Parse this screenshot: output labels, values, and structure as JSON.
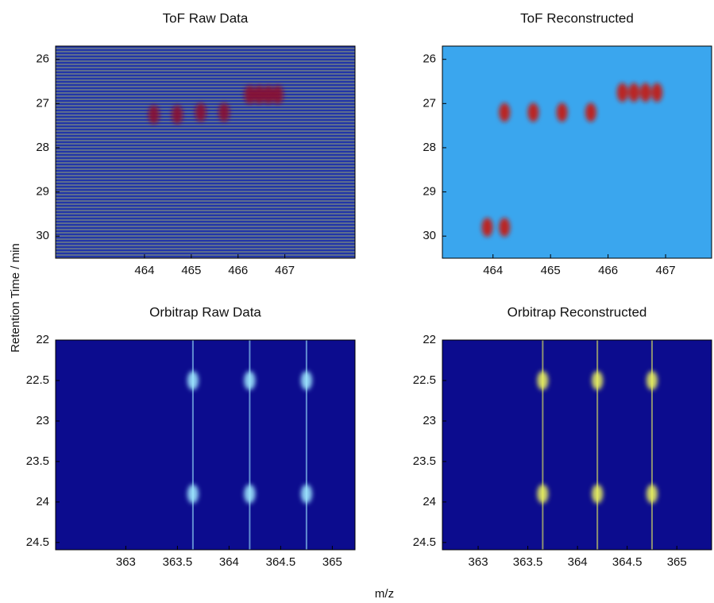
{
  "xlabel": "m/z",
  "ylabel": "Retention Time / min",
  "chart_data": [
    {
      "type": "heatmap",
      "title": "ToF Raw Data",
      "background": "#2236a8",
      "color": "#8a1030",
      "xlim": [
        462.1,
        468.5
      ],
      "ylim": [
        25.7,
        30.5
      ],
      "xticks": [
        464,
        465,
        466,
        467
      ],
      "yticks": [
        26,
        27,
        28,
        29,
        30
      ],
      "x": [
        464.2,
        464.7,
        465.2,
        465.7,
        466.25,
        466.45,
        466.65,
        466.85
      ],
      "y": [
        27.25,
        27.25,
        27.2,
        27.2,
        26.8,
        26.8,
        26.8,
        26.8
      ]
    },
    {
      "type": "heatmap",
      "title": "ToF Reconstructed",
      "background": "#3aa6ee",
      "color": "#c81a10",
      "xlim": [
        463.12,
        467.8
      ],
      "ylim": [
        25.7,
        30.5
      ],
      "xticks": [
        464,
        465,
        466,
        467
      ],
      "yticks": [
        26,
        27,
        28,
        29,
        30
      ],
      "x": [
        464.2,
        464.7,
        465.2,
        465.7,
        466.25,
        466.45,
        466.65,
        466.85,
        464.2,
        463.9
      ],
      "y": [
        27.2,
        27.2,
        27.2,
        27.2,
        26.75,
        26.75,
        26.75,
        26.75,
        29.8,
        29.8
      ]
    },
    {
      "type": "heatmap",
      "title": "Orbitrap Raw Data",
      "background": "#0c0c8e",
      "color": "#9ee8ff",
      "xlim": [
        362.32,
        365.22
      ],
      "ylim": [
        22,
        24.59
      ],
      "xticks": [
        363,
        363.5,
        364,
        364.5,
        365
      ],
      "yticks": [
        22,
        22.5,
        23,
        23.5,
        24,
        24.5
      ],
      "x": [
        363.65,
        364.2,
        364.75,
        363.65,
        364.2,
        364.75
      ],
      "y": [
        22.5,
        22.5,
        22.5,
        23.9,
        23.9,
        23.9
      ]
    },
    {
      "type": "heatmap",
      "title": "Orbitrap Reconstructed",
      "background": "#0c0c8e",
      "color": "#e8f060",
      "xlim": [
        362.64,
        365.35
      ],
      "ylim": [
        22,
        24.59
      ],
      "xticks": [
        363,
        363.5,
        364,
        364.5,
        365
      ],
      "yticks": [
        22,
        22.5,
        23,
        23.5,
        24,
        24.5
      ],
      "x": [
        363.65,
        364.2,
        364.75,
        363.65,
        364.2,
        364.75
      ],
      "y": [
        22.5,
        22.5,
        22.5,
        23.9,
        23.9,
        23.9
      ]
    }
  ]
}
